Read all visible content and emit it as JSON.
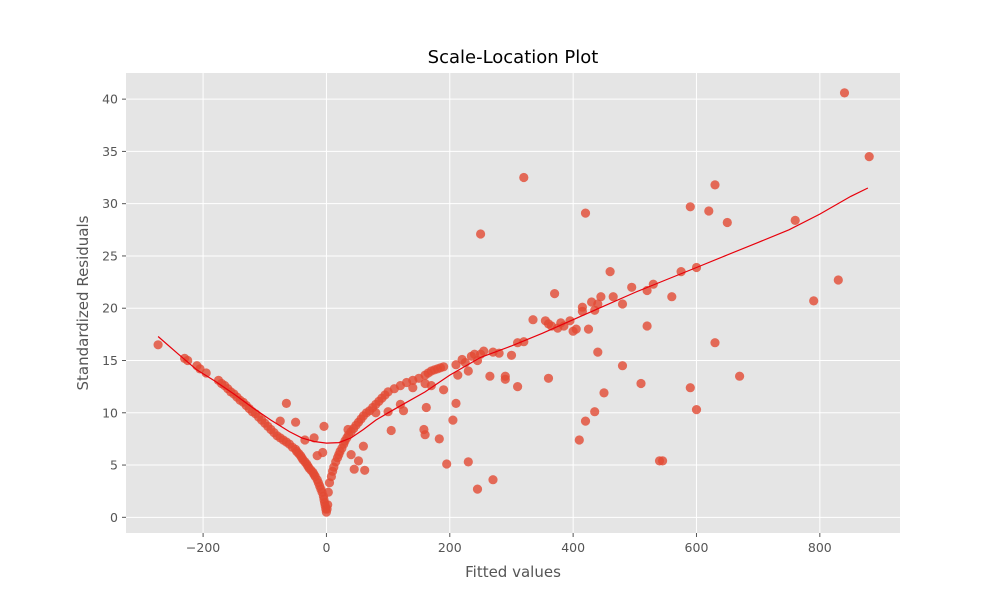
{
  "chart_data": {
    "type": "scatter",
    "title": "Scale-Location Plot",
    "xlabel": "Fitted values",
    "ylabel": "Standardized Residuals",
    "xlim": [
      -325,
      930
    ],
    "ylim": [
      -1.5,
      42.5
    ],
    "x_ticks": [
      -200,
      0,
      200,
      400,
      600,
      800
    ],
    "x_tick_labels": [
      "−200",
      "0",
      "200",
      "400",
      "600",
      "800"
    ],
    "y_ticks": [
      0,
      5,
      10,
      15,
      20,
      25,
      30,
      35,
      40
    ],
    "y_tick_labels": [
      "0",
      "5",
      "10",
      "15",
      "20",
      "25",
      "30",
      "35",
      "40"
    ],
    "grid": true,
    "background": "#e5e5e5",
    "colors": {
      "points": "#e24a33",
      "trend": "#e8000b"
    },
    "series": [
      {
        "kind": "points",
        "x": [
          -273,
          -230,
          -225,
          -210,
          -205,
          -195,
          -175,
          -170,
          -165,
          -160,
          -155,
          -150,
          -145,
          -140,
          -135,
          -130,
          -125,
          -120,
          -115,
          -110,
          -105,
          -100,
          -95,
          -90,
          -85,
          -80,
          -75,
          -70,
          -65,
          -60,
          -55,
          -50,
          -48,
          -45,
          -42,
          -40,
          -38,
          -35,
          -32,
          -30,
          -28,
          -25,
          -22,
          -20,
          -18,
          -15,
          -13,
          -11,
          -9,
          -7,
          -5,
          -4,
          -3,
          -2,
          -1,
          0,
          1,
          2,
          -65,
          -75,
          -50,
          -35,
          -20,
          -15,
          -6,
          -4,
          3,
          5,
          8,
          10,
          12,
          15,
          18,
          20,
          22,
          25,
          28,
          30,
          33,
          36,
          40,
          44,
          48,
          52,
          56,
          60,
          65,
          70,
          75,
          80,
          85,
          90,
          95,
          100,
          110,
          120,
          130,
          140,
          150,
          160,
          165,
          170,
          175,
          180,
          185,
          190,
          35,
          40,
          45,
          52,
          60,
          62,
          80,
          105,
          125,
          158,
          160,
          162,
          183,
          195,
          205,
          210,
          213,
          220,
          225,
          230,
          235,
          240,
          245,
          250,
          255,
          265,
          270,
          280,
          290,
          300,
          310,
          320,
          335,
          355,
          360,
          365,
          375,
          380,
          385,
          395,
          400,
          405,
          415,
          425,
          430,
          435,
          440,
          445,
          460,
          465,
          480,
          495,
          520,
          530,
          560,
          575,
          590,
          600,
          630,
          620,
          360,
          250,
          320,
          420,
          370,
          415,
          520,
          545,
          600,
          670,
          760,
          790,
          830,
          840,
          880,
          650,
          630,
          590,
          540,
          510,
          480,
          440,
          450,
          435,
          420,
          410,
          270,
          245,
          230,
          210,
          190,
          170,
          160,
          140,
          120,
          100,
          290,
          310
        ],
        "y": [
          16.5,
          15.2,
          15.0,
          14.5,
          14.2,
          13.8,
          13.1,
          12.8,
          12.6,
          12.3,
          12.0,
          11.8,
          11.5,
          11.2,
          11.0,
          10.7,
          10.4,
          10.1,
          9.9,
          9.6,
          9.3,
          9.0,
          8.7,
          8.4,
          8.1,
          7.8,
          7.6,
          7.4,
          7.2,
          7.0,
          6.7,
          6.5,
          6.3,
          6.1,
          5.9,
          5.7,
          5.5,
          5.3,
          5.1,
          4.9,
          4.7,
          4.5,
          4.3,
          4.1,
          3.9,
          3.6,
          3.3,
          3.0,
          2.7,
          2.4,
          2.0,
          1.7,
          1.4,
          1.1,
          0.8,
          0.5,
          0.8,
          1.2,
          10.9,
          9.2,
          9.1,
          7.4,
          7.6,
          5.9,
          6.2,
          8.7,
          2.4,
          3.3,
          3.9,
          4.4,
          4.8,
          5.3,
          5.7,
          6.0,
          6.3,
          6.6,
          7.0,
          7.3,
          7.6,
          7.9,
          8.2,
          8.5,
          8.8,
          9.1,
          9.4,
          9.7,
          10.0,
          10.2,
          10.5,
          10.8,
          11.1,
          11.4,
          11.7,
          12.0,
          12.3,
          12.6,
          12.9,
          13.1,
          13.3,
          13.6,
          13.8,
          14.0,
          14.1,
          14.2,
          14.3,
          14.4,
          8.4,
          6.0,
          4.6,
          5.4,
          6.8,
          4.5,
          10.0,
          8.3,
          10.2,
          8.4,
          7.9,
          10.5,
          7.5,
          5.1,
          9.3,
          14.6,
          13.6,
          15.1,
          14.8,
          14.0,
          15.4,
          15.6,
          15.0,
          15.6,
          15.9,
          13.5,
          15.8,
          15.7,
          13.5,
          15.5,
          16.7,
          16.8,
          18.9,
          18.8,
          18.5,
          18.3,
          18.1,
          18.6,
          18.3,
          18.8,
          17.8,
          18.0,
          20.1,
          18.0,
          20.6,
          19.8,
          20.4,
          21.1,
          23.5,
          21.1,
          20.4,
          22.0,
          21.7,
          22.3,
          21.1,
          23.5,
          29.7,
          23.9,
          31.8,
          29.3,
          13.3,
          27.1,
          32.5,
          29.1,
          21.4,
          19.7,
          18.3,
          5.4,
          10.3,
          13.5,
          28.4,
          20.7,
          22.7,
          40.6,
          34.5,
          28.2,
          16.7,
          12.4,
          5.4,
          12.8,
          14.5,
          15.8,
          11.9,
          10.1,
          9.2,
          7.4,
          3.6,
          2.7,
          5.3,
          10.9,
          12.2,
          12.6,
          12.8,
          12.4,
          10.8,
          10.1,
          13.2,
          12.5
        ]
      },
      {
        "kind": "trend",
        "x": [
          -273,
          -240,
          -210,
          -180,
          -150,
          -120,
          -90,
          -60,
          -40,
          -20,
          0,
          20,
          40,
          60,
          80,
          100,
          130,
          160,
          200,
          250,
          300,
          350,
          400,
          450,
          500,
          550,
          600,
          650,
          700,
          750,
          800,
          850,
          878
        ],
        "y": [
          17.3,
          15.6,
          14.1,
          13.0,
          11.8,
          10.5,
          9.3,
          8.2,
          7.6,
          7.25,
          7.1,
          7.15,
          7.6,
          8.4,
          9.3,
          10.0,
          11.0,
          12.0,
          13.6,
          15.3,
          16.4,
          17.6,
          18.9,
          20.2,
          21.5,
          22.7,
          23.9,
          25.1,
          26.3,
          27.5,
          29.0,
          30.7,
          31.5
        ]
      }
    ]
  }
}
